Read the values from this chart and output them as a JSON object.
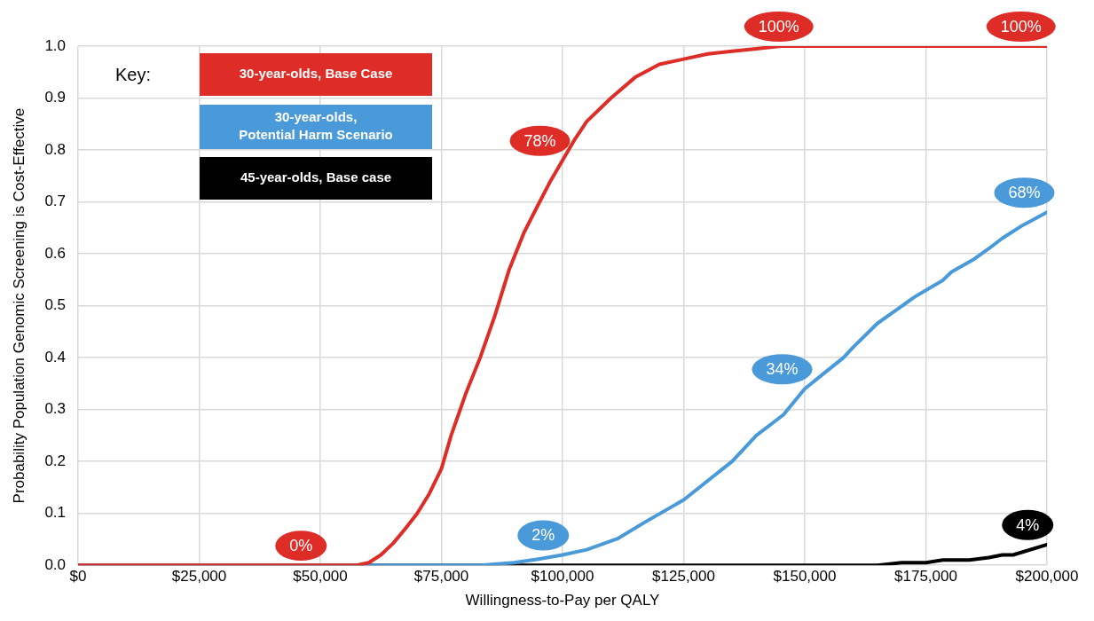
{
  "chart_data": {
    "type": "line",
    "xlabel": "Willingness-to-Pay per QALY",
    "ylabel": "Probability Population Genomic Screening is Cost-Effective",
    "xlim": [
      0,
      200000
    ],
    "ylim": [
      0,
      1
    ],
    "xticks": [
      {
        "value": 0,
        "label": "$0"
      },
      {
        "value": 25000,
        "label": "$25,000"
      },
      {
        "value": 50000,
        "label": "$50,000"
      },
      {
        "value": 75000,
        "label": "$75,000"
      },
      {
        "value": 100000,
        "label": "$100,000"
      },
      {
        "value": 125000,
        "label": "$125,000"
      },
      {
        "value": 150000,
        "label": "$150,000"
      },
      {
        "value": 175000,
        "label": "$175,000"
      },
      {
        "value": 200000,
        "label": "$200,000"
      }
    ],
    "yticks": [
      {
        "value": 0,
        "label": "0.0"
      },
      {
        "value": 0.1,
        "label": "0.1"
      },
      {
        "value": 0.2,
        "label": "0.2"
      },
      {
        "value": 0.3,
        "label": "0.3"
      },
      {
        "value": 0.4,
        "label": "0.4"
      },
      {
        "value": 0.5,
        "label": "0.5"
      },
      {
        "value": 0.6,
        "label": "0.6"
      },
      {
        "value": 0.7,
        "label": "0.7"
      },
      {
        "value": 0.8,
        "label": "0.8"
      },
      {
        "value": 0.9,
        "label": "0.9"
      },
      {
        "value": 1.0,
        "label": "1.0"
      }
    ],
    "grid": true,
    "legend": "top left",
    "legend_title": "Key:",
    "marker": "none",
    "line_style": "solid",
    "series": [
      {
        "name": "30-year-olds, Base Case",
        "color": "#de2c27",
        "x": [
          0,
          50000,
          57500,
          60000,
          62500,
          65000,
          67500,
          70000,
          72500,
          75000,
          77000,
          80000,
          83000,
          86000,
          89000,
          92000,
          95000,
          97500,
          100000,
          102500,
          105000,
          110000,
          115000,
          120000,
          125000,
          130000,
          135000,
          140000,
          145000,
          150000,
          175000,
          200000
        ],
        "values": [
          0,
          0,
          0,
          0.005,
          0.02,
          0.042,
          0.07,
          0.1,
          0.138,
          0.186,
          0.25,
          0.33,
          0.4,
          0.48,
          0.57,
          0.64,
          0.695,
          0.74,
          0.78,
          0.82,
          0.855,
          0.9,
          0.94,
          0.965,
          0.975,
          0.985,
          0.99,
          0.995,
          1.0,
          1.0,
          1.0,
          1.0
        ],
        "value_labels": [
          null,
          "0%",
          null,
          null,
          null,
          null,
          null,
          null,
          null,
          null,
          null,
          null,
          null,
          null,
          null,
          null,
          null,
          null,
          "78%",
          null,
          null,
          null,
          null,
          null,
          null,
          null,
          null,
          null,
          null,
          "100%",
          null,
          "100%"
        ]
      },
      {
        "name": "30-year-olds,\nPotential Harm Scenario",
        "color": "#4a9ad9",
        "x": [
          0,
          83000,
          90000,
          95000,
          100000,
          105000,
          111500,
          117000,
          125000,
          135000,
          140000,
          145600,
          150000,
          154000,
          158000,
          160000,
          165000,
          172700,
          178500,
          180300,
          185000,
          188000,
          190800,
          195000,
          200000
        ],
        "values": [
          0,
          0,
          0.005,
          0.012,
          0.02,
          0.03,
          0.052,
          0.083,
          0.126,
          0.2,
          0.25,
          0.29,
          0.34,
          0.37,
          0.4,
          0.42,
          0.466,
          0.517,
          0.549,
          0.565,
          0.59,
          0.61,
          0.63,
          0.655,
          0.68
        ],
        "value_labels": [
          null,
          null,
          null,
          null,
          "2%",
          null,
          null,
          null,
          null,
          null,
          null,
          null,
          "34%",
          null,
          null,
          null,
          null,
          null,
          null,
          null,
          null,
          null,
          null,
          null,
          "68%"
        ]
      },
      {
        "name": "45-year-olds, Base case",
        "color": "#000000",
        "x": [
          0,
          150000,
          165000,
          170000,
          175000,
          178500,
          184000,
          188000,
          190800,
          193000,
          200000
        ],
        "values": [
          0,
          0,
          0,
          0.005,
          0.005,
          0.01,
          0.01,
          0.015,
          0.02,
          0.02,
          0.04
        ],
        "value_labels": [
          null,
          null,
          null,
          null,
          null,
          null,
          null,
          null,
          null,
          null,
          "4%"
        ]
      }
    ]
  }
}
